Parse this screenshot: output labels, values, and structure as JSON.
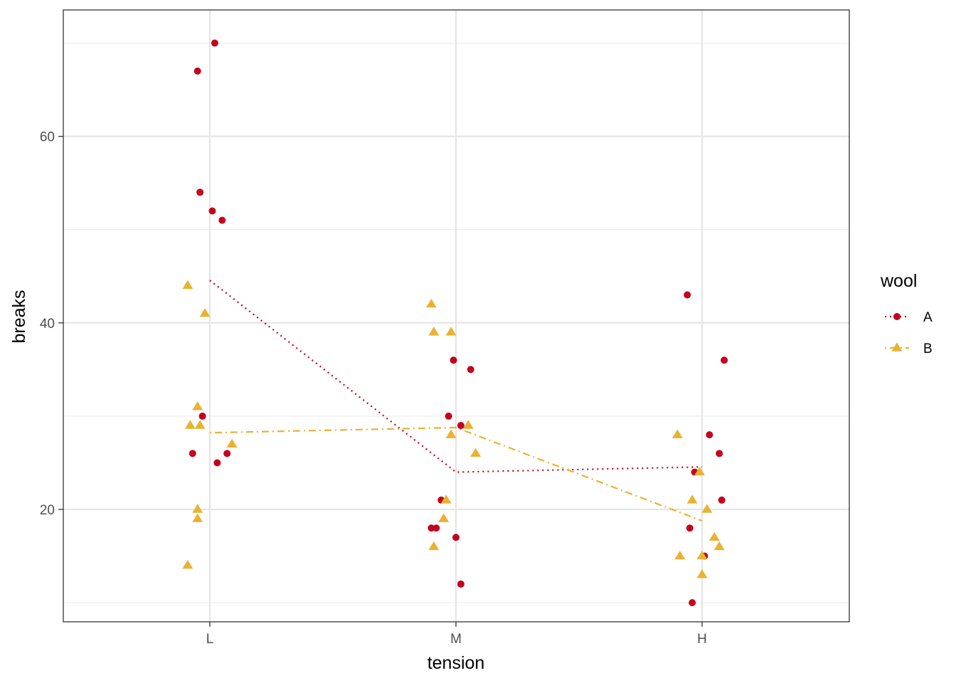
{
  "chart_data": {
    "type": "scatter",
    "title": "",
    "xlabel": "tension",
    "ylabel": "breaks",
    "categories": [
      "L",
      "M",
      "H"
    ],
    "ylim": [
      7.95,
      73.55
    ],
    "y_ticks": [
      20,
      40,
      60
    ],
    "grid": true,
    "legend": {
      "title": "wool",
      "placement": "right"
    },
    "series": [
      {
        "name": "A",
        "color": "#C4001F",
        "marker": "circle",
        "line_style": "dotted",
        "points": [
          {
            "x": "L",
            "dx": -0.05,
            "y": 67
          },
          {
            "x": "L",
            "dx": 0.02,
            "y": 70
          },
          {
            "x": "L",
            "dx": -0.04,
            "y": 54
          },
          {
            "x": "L",
            "dx": 0.01,
            "y": 52
          },
          {
            "x": "L",
            "dx": 0.05,
            "y": 51
          },
          {
            "x": "L",
            "dx": -0.03,
            "y": 30
          },
          {
            "x": "L",
            "dx": -0.07,
            "y": 26
          },
          {
            "x": "L",
            "dx": 0.07,
            "y": 26
          },
          {
            "x": "L",
            "dx": 0.03,
            "y": 25
          },
          {
            "x": "M",
            "dx": -0.03,
            "y": 30
          },
          {
            "x": "M",
            "dx": -0.01,
            "y": 36
          },
          {
            "x": "M",
            "dx": 0.06,
            "y": 35
          },
          {
            "x": "M",
            "dx": 0.02,
            "y": 29
          },
          {
            "x": "M",
            "dx": -0.06,
            "y": 21
          },
          {
            "x": "M",
            "dx": -0.1,
            "y": 18
          },
          {
            "x": "M",
            "dx": -0.08,
            "y": 18
          },
          {
            "x": "M",
            "dx": 0.0,
            "y": 17
          },
          {
            "x": "M",
            "dx": 0.02,
            "y": 12
          },
          {
            "x": "H",
            "dx": -0.06,
            "y": 43
          },
          {
            "x": "H",
            "dx": 0.09,
            "y": 36
          },
          {
            "x": "H",
            "dx": 0.03,
            "y": 28
          },
          {
            "x": "H",
            "dx": 0.07,
            "y": 26
          },
          {
            "x": "H",
            "dx": -0.03,
            "y": 24
          },
          {
            "x": "H",
            "dx": 0.08,
            "y": 21
          },
          {
            "x": "H",
            "dx": -0.05,
            "y": 18
          },
          {
            "x": "H",
            "dx": 0.01,
            "y": 15
          },
          {
            "x": "H",
            "dx": -0.04,
            "y": 10
          }
        ],
        "means": [
          44.56,
          24.0,
          24.56
        ]
      },
      {
        "name": "B",
        "color": "#E9B232",
        "marker": "triangle",
        "line_style": "dotdash",
        "points": [
          {
            "x": "L",
            "dx": -0.09,
            "y": 44
          },
          {
            "x": "L",
            "dx": -0.02,
            "y": 41
          },
          {
            "x": "L",
            "dx": -0.05,
            "y": 31
          },
          {
            "x": "L",
            "dx": -0.08,
            "y": 29
          },
          {
            "x": "L",
            "dx": -0.04,
            "y": 29
          },
          {
            "x": "L",
            "dx": 0.09,
            "y": 27
          },
          {
            "x": "L",
            "dx": -0.05,
            "y": 20
          },
          {
            "x": "L",
            "dx": -0.05,
            "y": 19
          },
          {
            "x": "L",
            "dx": -0.09,
            "y": 14
          },
          {
            "x": "M",
            "dx": -0.1,
            "y": 42
          },
          {
            "x": "M",
            "dx": -0.09,
            "y": 39
          },
          {
            "x": "M",
            "dx": -0.02,
            "y": 39
          },
          {
            "x": "M",
            "dx": 0.05,
            "y": 29
          },
          {
            "x": "M",
            "dx": -0.02,
            "y": 28
          },
          {
            "x": "M",
            "dx": 0.08,
            "y": 26
          },
          {
            "x": "M",
            "dx": -0.04,
            "y": 21
          },
          {
            "x": "M",
            "dx": -0.05,
            "y": 19
          },
          {
            "x": "M",
            "dx": -0.09,
            "y": 16
          },
          {
            "x": "H",
            "dx": -0.1,
            "y": 28
          },
          {
            "x": "H",
            "dx": -0.01,
            "y": 24
          },
          {
            "x": "H",
            "dx": -0.04,
            "y": 21
          },
          {
            "x": "H",
            "dx": 0.02,
            "y": 20
          },
          {
            "x": "H",
            "dx": 0.05,
            "y": 17
          },
          {
            "x": "H",
            "dx": 0.07,
            "y": 16
          },
          {
            "x": "H",
            "dx": -0.09,
            "y": 15
          },
          {
            "x": "H",
            "dx": 0.0,
            "y": 15
          },
          {
            "x": "H",
            "dx": 0.0,
            "y": 13
          }
        ],
        "means": [
          28.22,
          28.78,
          18.78
        ]
      }
    ]
  }
}
